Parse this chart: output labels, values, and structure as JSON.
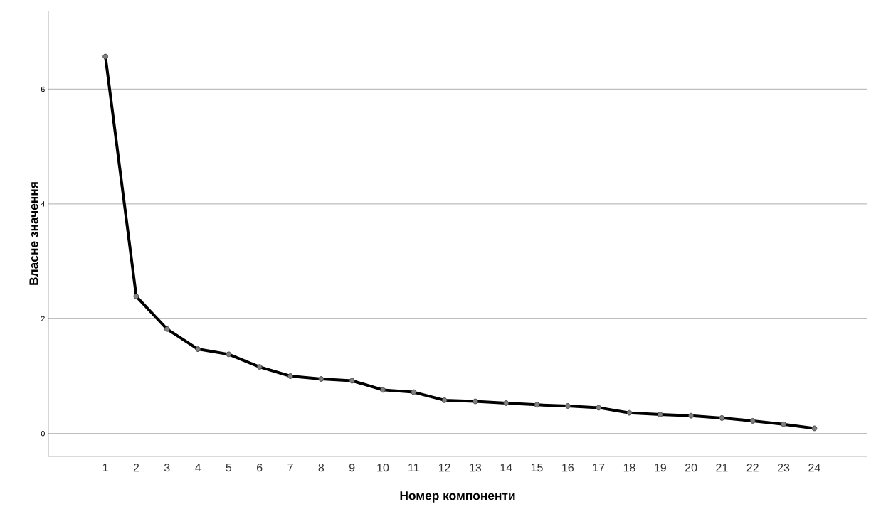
{
  "chart_data": {
    "type": "line",
    "xlabel": "Номер компоненти",
    "ylabel": "Власне значення",
    "categories": [
      "1",
      "2",
      "3",
      "4",
      "5",
      "6",
      "7",
      "8",
      "9",
      "10",
      "11",
      "12",
      "13",
      "14",
      "15",
      "16",
      "17",
      "18",
      "19",
      "20",
      "21",
      "22",
      "23",
      "24"
    ],
    "series": [
      {
        "color": "#000000",
        "values": [
          6.57,
          2.39,
          1.82,
          1.47,
          1.38,
          1.16,
          1.0,
          0.95,
          0.92,
          0.76,
          0.72,
          0.58,
          0.56,
          0.53,
          0.5,
          0.48,
          0.45,
          0.36,
          0.33,
          0.31,
          0.27,
          0.22,
          0.16,
          0.09
        ]
      }
    ],
    "ylim": [
      -0.4,
      7.37
    ],
    "yticks": [
      0,
      2,
      4,
      6
    ],
    "grid": "y",
    "marker": "circle",
    "line_style": "solid"
  }
}
